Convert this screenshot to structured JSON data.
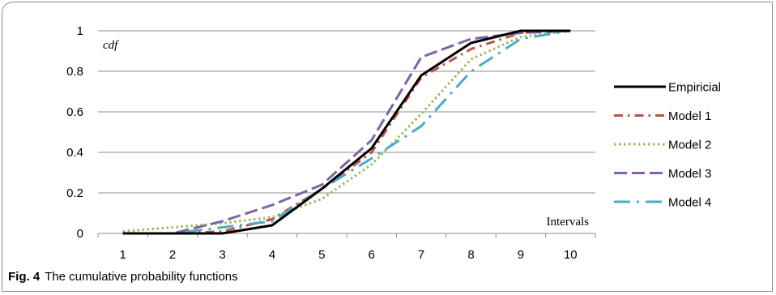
{
  "caption": {
    "figure_label": "Fig. 4",
    "text": "The cumulative probability functions"
  },
  "chart_data": {
    "type": "line",
    "x": [
      1,
      2,
      3,
      4,
      5,
      6,
      7,
      8,
      9,
      10
    ],
    "x_tick_labels": [
      "1",
      "2",
      "3",
      "4",
      "5",
      "6",
      "7",
      "8",
      "9",
      "10"
    ],
    "y_tick_labels": [
      "0",
      "0.2",
      "0.4",
      "0.6",
      "0.8",
      "1"
    ],
    "xlabel": "Intervals",
    "ylabel": "cdf",
    "ylim": [
      0,
      1
    ],
    "grid": "horizontal",
    "legend_position": "right",
    "series": [
      {
        "name": "Empiricial",
        "color": "#000000",
        "dash": "solid",
        "values": [
          0,
          0,
          0,
          0.04,
          0.22,
          0.42,
          0.78,
          0.94,
          1.0,
          1.0
        ]
      },
      {
        "name": "Model 1",
        "color": "#c0504d",
        "dash": "dashdot",
        "values": [
          0,
          0,
          0.01,
          0.07,
          0.22,
          0.4,
          0.77,
          0.91,
          0.99,
          1.0
        ]
      },
      {
        "name": "Model 2",
        "color": "#9bbb59",
        "dash": "dot",
        "values": [
          0.01,
          0.03,
          0.05,
          0.08,
          0.17,
          0.34,
          0.59,
          0.86,
          0.97,
          1.0
        ]
      },
      {
        "name": "Model 3",
        "color": "#8064a2",
        "dash": "longdash",
        "values": [
          0,
          0,
          0.06,
          0.14,
          0.24,
          0.46,
          0.87,
          0.96,
          0.99,
          1.0
        ]
      },
      {
        "name": "Model 4",
        "color": "#4bacc6",
        "dash": "dashdotlong",
        "values": [
          0,
          0,
          0.03,
          0.06,
          0.22,
          0.37,
          0.53,
          0.8,
          0.96,
          1.0
        ]
      }
    ]
  }
}
